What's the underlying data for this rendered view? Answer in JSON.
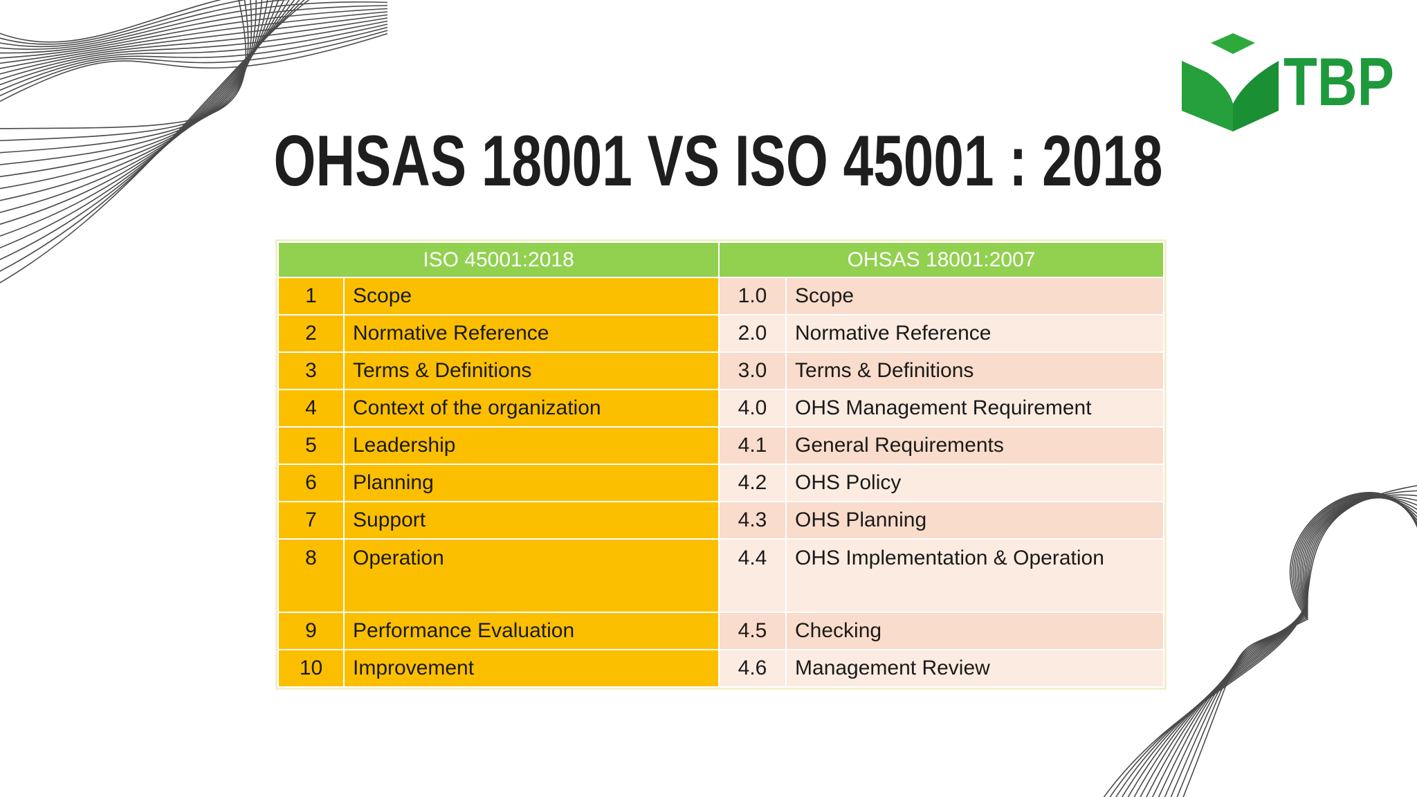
{
  "header": {
    "logo": "TBP",
    "title": "OHSAS 18001 VS ISO 45001 : 2018"
  },
  "table": {
    "headers": [
      "ISO 45001:2018",
      "OHSAS 18001:2007"
    ],
    "rows": [
      [
        "1",
        "Scope",
        "1.0",
        "Scope"
      ],
      [
        "2",
        "Normative Reference",
        "2.0",
        "Normative Reference"
      ],
      [
        "3",
        "Terms & Definitions",
        "3.0",
        "Terms & Definitions"
      ],
      [
        "4",
        "Context of the organization",
        "4.0",
        "OHS Management Requirement"
      ],
      [
        "5",
        "Leadership",
        "4.1",
        "General Requirements"
      ],
      [
        "6",
        "Planning",
        "4.2",
        "OHS Policy"
      ],
      [
        "7",
        "Support",
        "4.3",
        "OHS Planning"
      ],
      [
        "8",
        "Operation",
        "4.4",
        "OHS Implementation & Operation"
      ],
      [
        "9",
        "Performance Evaluation",
        "4.5",
        "Checking"
      ],
      [
        "10",
        "Improvement",
        "4.6",
        "Management Review"
      ]
    ]
  }
}
